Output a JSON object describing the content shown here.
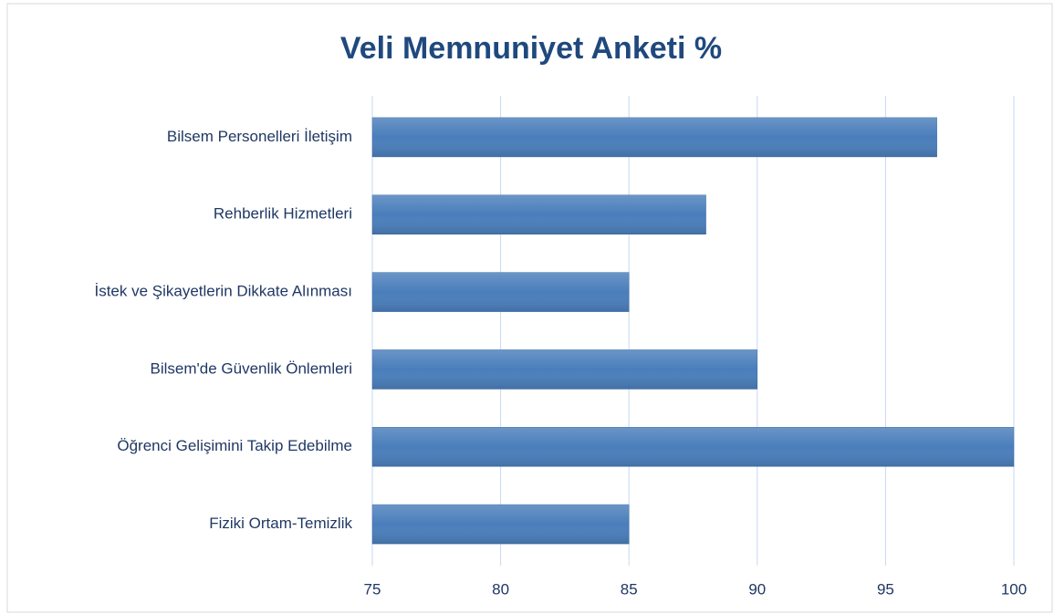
{
  "chart_data": {
    "type": "bar",
    "orientation": "horizontal",
    "title": "Veli Memnuniyet Anketi %",
    "categories": [
      "Bilsem Personelleri İletişim",
      "Rehberlik Hizmetleri",
      "İstek ve Şikayetlerin Dikkate Alınması",
      "Bilsem'de Güvenlik Önlemleri",
      "Öğrenci Gelişimini Takip Edebilme",
      "Fiziki Ortam-Temizlik"
    ],
    "values": [
      97,
      88,
      85,
      90,
      100,
      85
    ],
    "color": "#4a7ebb",
    "xlim": [
      75,
      100
    ],
    "xticks": [
      75,
      80,
      85,
      90,
      95,
      100
    ],
    "grid": true
  }
}
